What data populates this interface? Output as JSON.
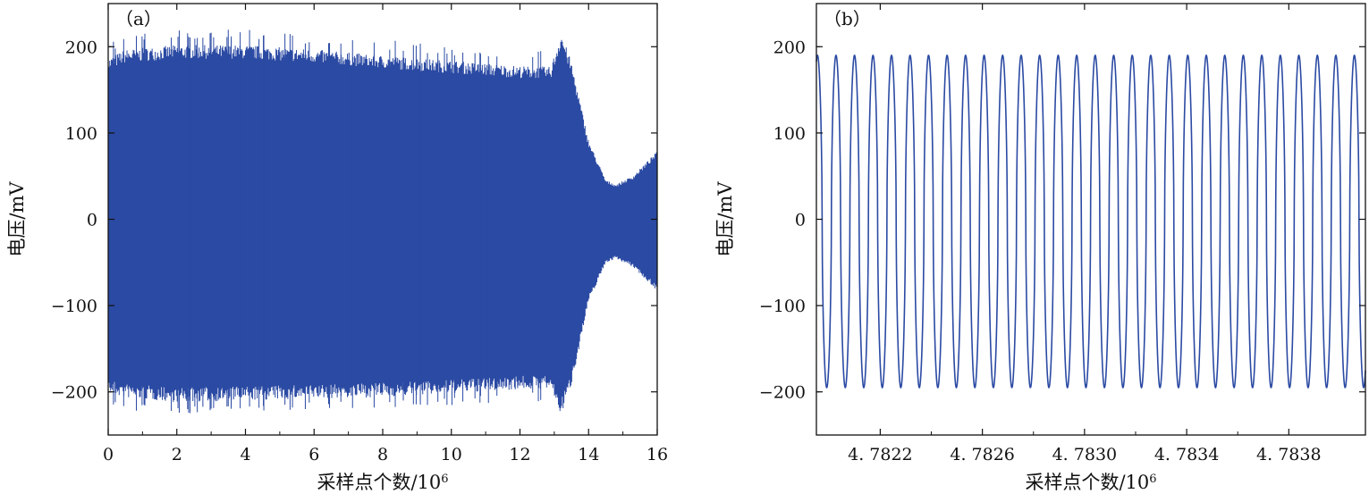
{
  "chart_data": [
    {
      "panel_label": "（a）",
      "type": "line",
      "title": "",
      "xlabel": "采样点个数/10",
      "xlabel_sup": "6",
      "ylabel": "电压/mV",
      "xlim": [
        0,
        16
      ],
      "ylim": [
        -250,
        250
      ],
      "xticks": [
        0,
        2,
        4,
        6,
        8,
        10,
        12,
        14,
        16
      ],
      "xtick_labels": [
        "0",
        "2",
        "4",
        "6",
        "8",
        "10",
        "12",
        "14",
        "16"
      ],
      "yticks": [
        -200,
        -100,
        0,
        100,
        200
      ],
      "ytick_labels": [
        "−200",
        "−100",
        "0",
        "100",
        "200"
      ],
      "grid": false,
      "color": "#2b4aa3",
      "envelope": {
        "x": [
          0,
          0.5,
          2,
          4,
          6,
          8,
          10,
          12,
          12.9,
          13.2,
          13.5,
          14.0,
          14.5,
          14.8,
          15.3,
          16
        ],
        "upper": [
          185,
          195,
          200,
          200,
          195,
          188,
          182,
          176,
          175,
          215,
          180,
          90,
          45,
          40,
          50,
          78
        ],
        "lower": [
          -200,
          -205,
          -210,
          -208,
          -206,
          -204,
          -200,
          -195,
          -195,
          -225,
          -190,
          -95,
          -50,
          -45,
          -55,
          -82
        ]
      }
    },
    {
      "panel_label": "（b）",
      "type": "line",
      "title": "",
      "xlabel": "采样点个数/10",
      "xlabel_sup": "6",
      "ylabel": "电压/mV",
      "xlim": [
        4.78195,
        4.7841
      ],
      "ylim": [
        -250,
        250
      ],
      "xticks": [
        4.7822,
        4.7826,
        4.783,
        4.7834,
        4.7838
      ],
      "xtick_labels": [
        "4. 7822",
        "4. 7826",
        "4. 7830",
        "4. 7834",
        "4. 7838"
      ],
      "yticks": [
        -200,
        -100,
        0,
        100,
        200
      ],
      "ytick_labels": [
        "−200",
        "−100",
        "0",
        "100",
        "200"
      ],
      "grid": false,
      "color": "#2b4aa3",
      "wave": {
        "period": 7.25e-05,
        "start": 4.78195,
        "amplitude_high": 190,
        "amplitude_low": -195
      }
    }
  ]
}
